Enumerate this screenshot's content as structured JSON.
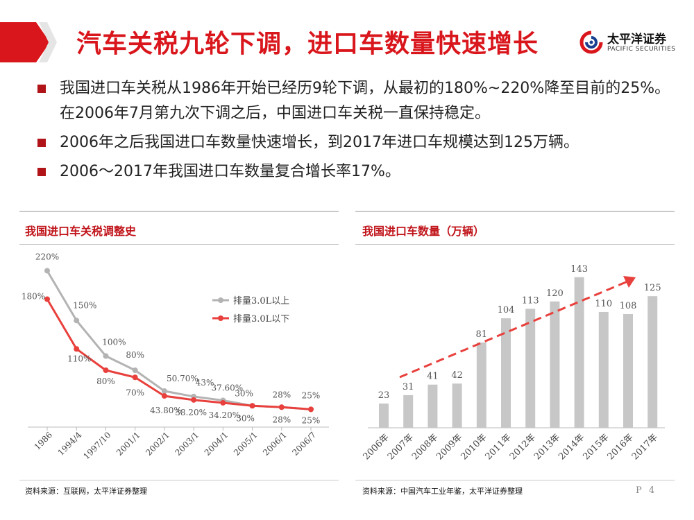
{
  "title": "汽车关税九轮下调，进口车数量快速增长",
  "logo": {
    "name": "太平洋证券",
    "english": "PACIFIC SECURITIES"
  },
  "bullets": [
    "我国进口车关税从1986年开始已经历9轮下调，从最初的180%~220%降至目前的25%。在2006年7月第九次下调之后，中国进口车关税一直保持稳定。",
    "2006年之后我国进口车数量快速增长，到2017年进口车规模达到125万辆。",
    "2006～2017年我国进口车数量复合增长率17%。"
  ],
  "left_panel": {
    "title": "我国进口车关税调整史",
    "source": "资料来源：互联网，太平洋证券整理"
  },
  "right_panel": {
    "title": "我国进口车数量（万辆）",
    "source": "资料来源：中国汽车工业年鉴，太平洋证券整理"
  },
  "page_number": "P 4",
  "colors": {
    "accent": "#d9161c",
    "gray_series": "#b3b3b3",
    "red_series": "#e8403c",
    "bar": "#c7c7c7",
    "arrow": "#e8403c"
  },
  "chart_data": [
    {
      "type": "line",
      "title": "我国进口车关税调整史",
      "categories": [
        "1986",
        "1994/4",
        "1997/10",
        "2001/1",
        "2002/1",
        "2003/1",
        "2004/1",
        "2005/1",
        "2006/1",
        "2006/7"
      ],
      "series": [
        {
          "name": "排量3.0L以上",
          "values": [
            220,
            150,
            100,
            80,
            50.7,
            43,
            37.6,
            30,
            28,
            25
          ],
          "labels": [
            "220%",
            "150%",
            "100%",
            "80%",
            "50.70%",
            "43%",
            "37.60%",
            "30%",
            "28%",
            "25%"
          ]
        },
        {
          "name": "排量3.0L以下",
          "values": [
            180,
            110,
            80,
            70,
            43.8,
            38.2,
            34.2,
            30,
            28,
            25
          ],
          "labels": [
            "180%",
            "110%",
            "80%",
            "70%",
            "43.80%",
            "38.20%",
            "34.20%",
            "30%",
            "28%",
            "25%"
          ]
        }
      ],
      "ylim": [
        0,
        240
      ],
      "legend": "top-right",
      "grid": false
    },
    {
      "type": "bar",
      "title": "我国进口车数量（万辆）",
      "categories": [
        "2006年",
        "2007年",
        "2008年",
        "2009年",
        "2010年",
        "2011年",
        "2012年",
        "2013年",
        "2014年",
        "2015年",
        "2016年",
        "2017年"
      ],
      "values": [
        23,
        31,
        41,
        42,
        81,
        104,
        113,
        120,
        143,
        110,
        108,
        125
      ],
      "ylim": [
        0,
        160
      ],
      "trend_arrow": true,
      "grid": false
    }
  ]
}
